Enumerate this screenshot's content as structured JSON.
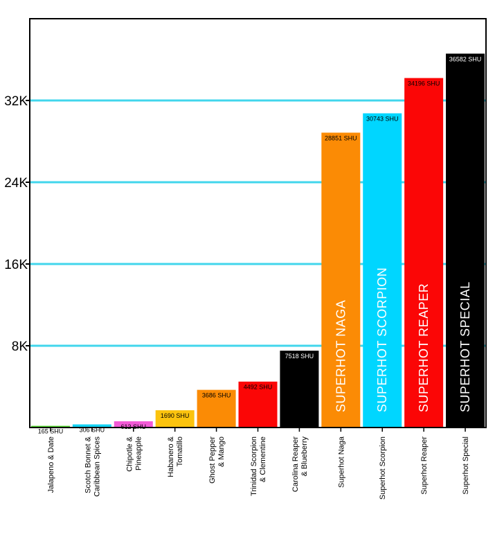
{
  "chart_data": {
    "type": "bar",
    "title": "",
    "xlabel": "",
    "ylabel": "",
    "ylim": [
      0,
      40000
    ],
    "yticks": [
      8000,
      16000,
      24000,
      32000
    ],
    "ytick_labels": [
      "8K",
      "16K",
      "24K",
      "32K"
    ],
    "grid": "horizontal",
    "grid_color": "#41d6ec",
    "categories": [
      [
        "Jalapeno & Date"
      ],
      [
        "Scotch Bonnet &",
        "Caribbean Spices"
      ],
      [
        "Chipotle &",
        "Pineapple"
      ],
      [
        "Habanero &",
        "Tomatillo"
      ],
      [
        "Ghost Pepper",
        "& Mango"
      ],
      [
        "Trinidad Scorpion",
        "& Clementine"
      ],
      [
        "Carolina Reaper",
        "& Blueberry"
      ],
      [
        "Superhot Naga"
      ],
      [
        "Superhot Scorpion"
      ],
      [
        "Superhot Reaper"
      ],
      [
        "Superhot Special"
      ]
    ],
    "values": [
      165,
      306,
      612,
      1690,
      3686,
      4492,
      7518,
      28851,
      30743,
      34196,
      36582
    ],
    "data_labels": [
      "165 SHU",
      "306 SHU",
      "612 SHU",
      "1690 SHU",
      "3686 SHU",
      "4492 SHU",
      "7518 SHU",
      "28851 SHU",
      "30743 SHU",
      "34196 SHU",
      "36582 SHU"
    ],
    "inner_labels": [
      "",
      "",
      "",
      "",
      "",
      "",
      "",
      "SUPERHOT NAGA",
      "SUPERHOT SCORPION",
      "SUPERHOT REAPER",
      "SUPERHOT SPECIAL"
    ],
    "colors": [
      "#4ed42a",
      "#14d2f3",
      "#f25ad6",
      "#fbc30e",
      "#fb8b05",
      "#fb0606",
      "#000000",
      "#fb8b05",
      "#00d6ff",
      "#fb0606",
      "#000000"
    ],
    "label_colors": [
      "#000000",
      "#000000",
      "#000000",
      "#000000",
      "#000000",
      "#000000",
      "#ffffff",
      "#000000",
      "#000000",
      "#000000",
      "#ffffff"
    ]
  }
}
